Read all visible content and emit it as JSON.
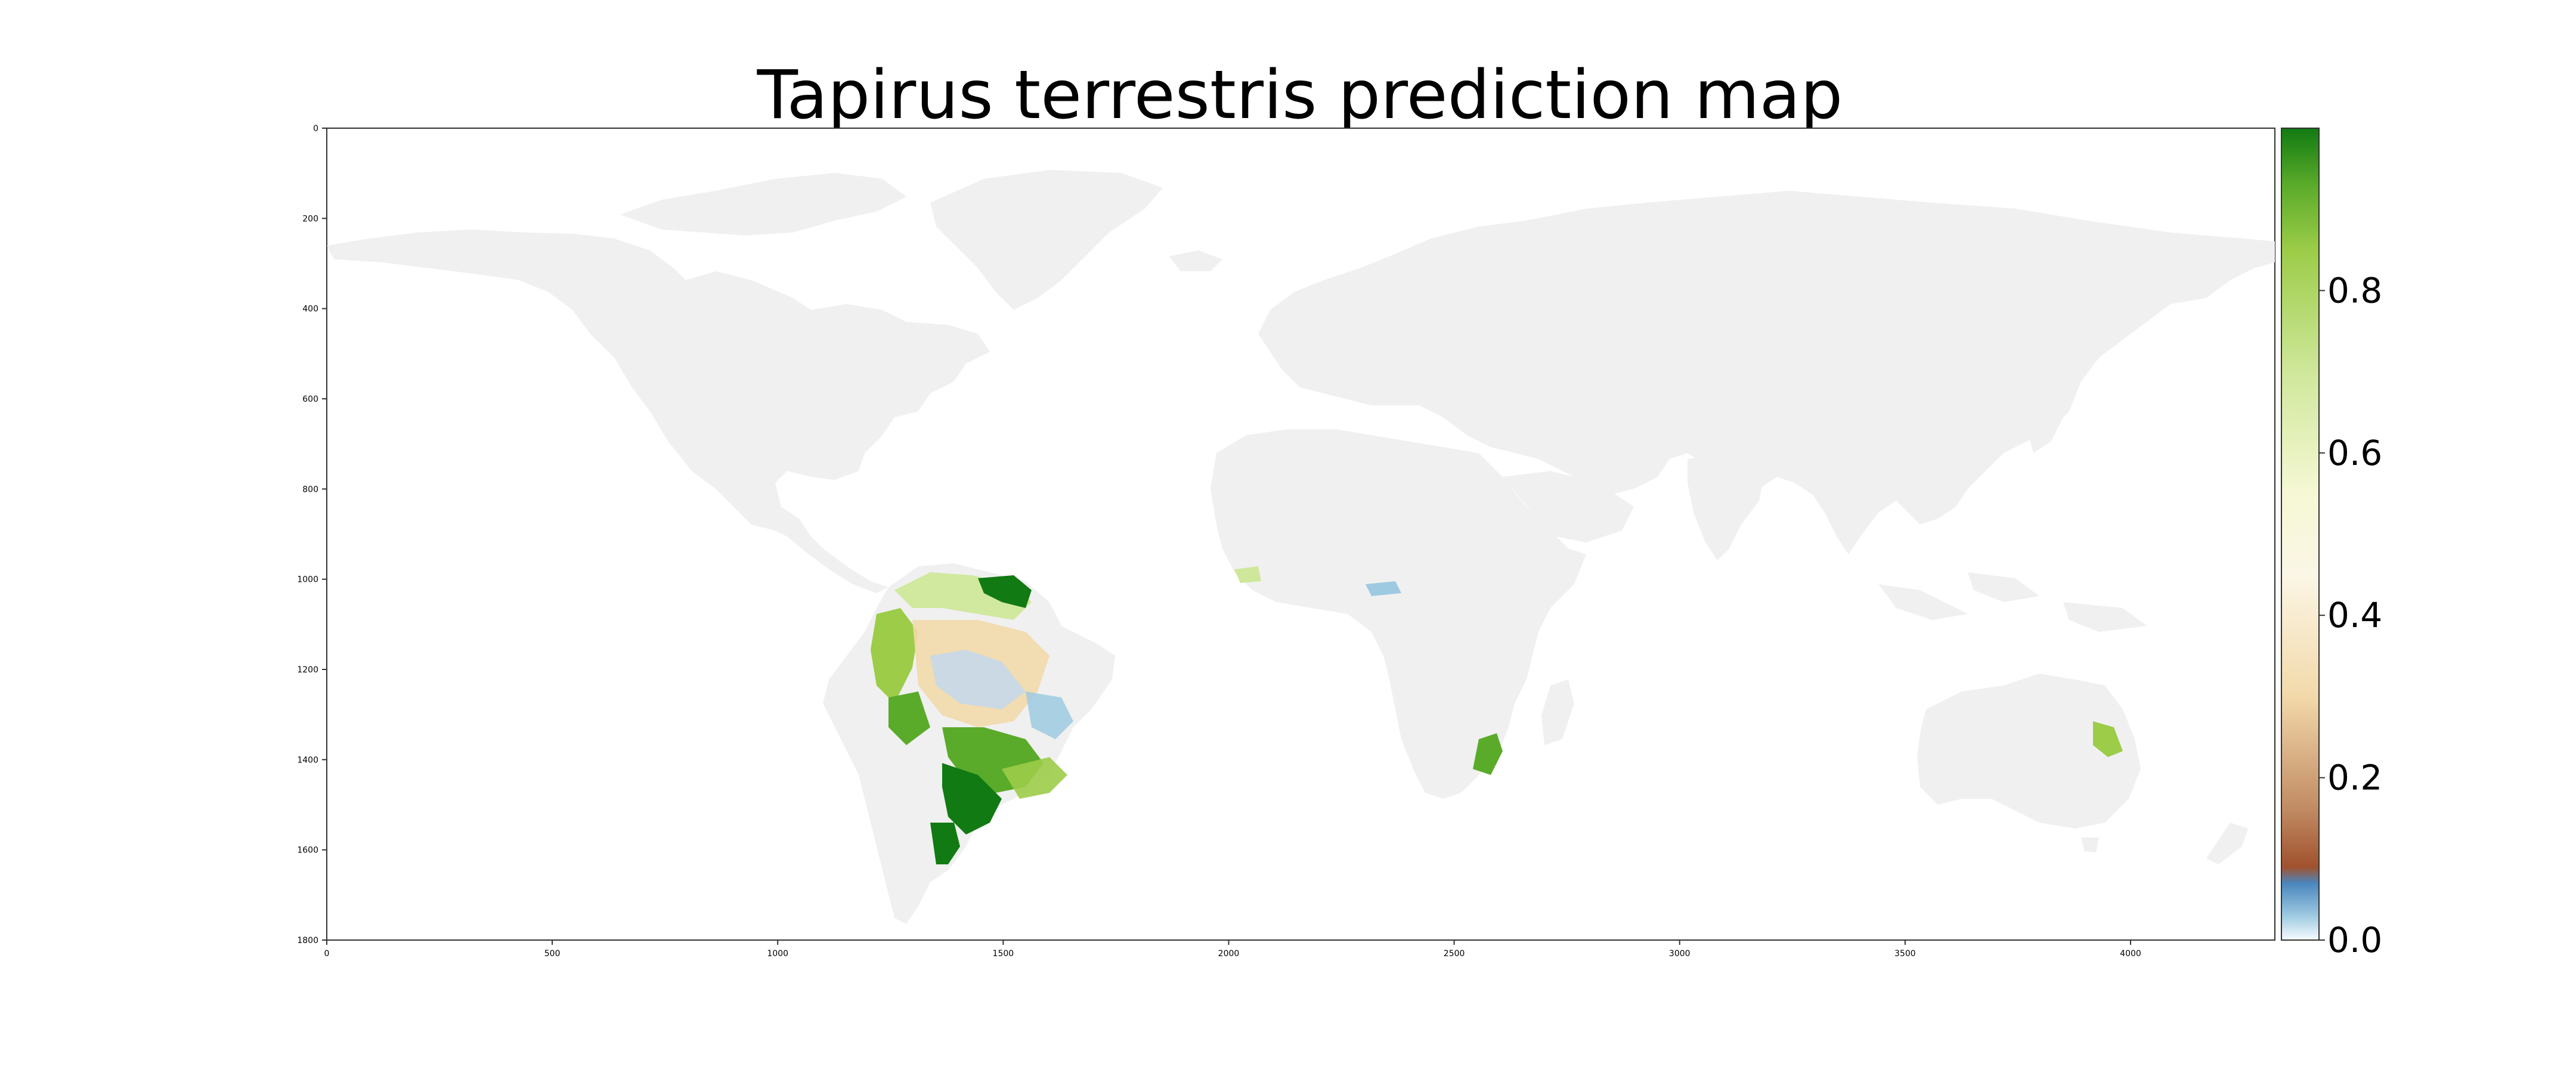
{
  "title": "Tapirus terrestris prediction map",
  "map": {
    "x_ticks": [
      "0",
      "500",
      "1000",
      "1500",
      "2000",
      "2500",
      "3000",
      "3500",
      "4000"
    ],
    "y_ticks": [
      "0",
      "200",
      "400",
      "600",
      "800",
      "1000",
      "1200",
      "1400",
      "1600",
      "1800"
    ],
    "x_range": [
      0,
      4320
    ],
    "y_range": [
      0,
      1800
    ],
    "land_color": "#f0f0f0",
    "background_color": "#ffffff"
  },
  "colorbar": {
    "ticks": [
      "0.0",
      "0.2",
      "0.4",
      "0.6",
      "0.8"
    ],
    "tick_values": [
      0.0,
      0.2,
      0.4,
      0.6,
      0.8
    ],
    "range": [
      0,
      1
    ],
    "colormap_stops": [
      {
        "v": 0.0,
        "c": "#f7fbff"
      },
      {
        "v": 0.03,
        "c": "#9ecae1"
      },
      {
        "v": 0.07,
        "c": "#4a86bd"
      },
      {
        "v": 0.09,
        "c": "#a0522d"
      },
      {
        "v": 0.16,
        "c": "#c08a62"
      },
      {
        "v": 0.3,
        "c": "#f2d9aa"
      },
      {
        "v": 0.45,
        "c": "#fbf6e6"
      },
      {
        "v": 0.55,
        "c": "#f6f8d5"
      },
      {
        "v": 0.7,
        "c": "#cfe79a"
      },
      {
        "v": 0.85,
        "c": "#9ccc48"
      },
      {
        "v": 0.93,
        "c": "#5aab2a"
      },
      {
        "v": 1.0,
        "c": "#127a12"
      }
    ]
  }
}
